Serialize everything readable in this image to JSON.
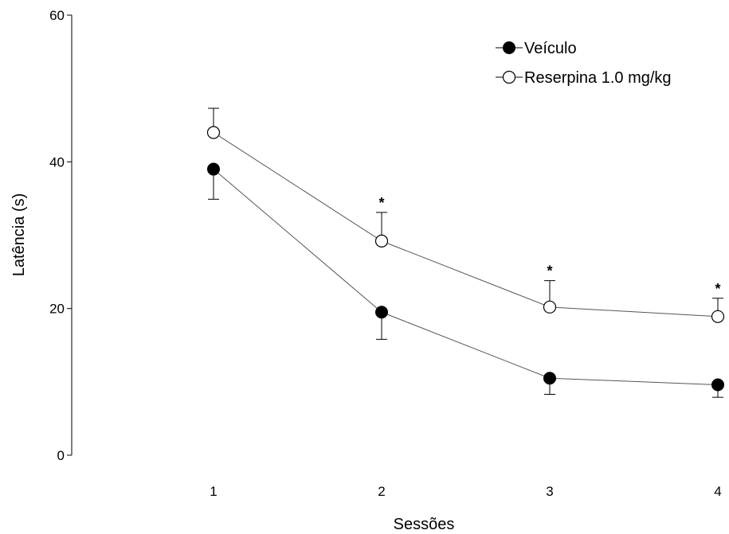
{
  "chart_data": {
    "type": "line",
    "title": "",
    "xlabel": "Sessões",
    "ylabel": "Latência (s)",
    "x": [
      1,
      2,
      3,
      4
    ],
    "x_ticks": [
      "1",
      "2",
      "3",
      "4"
    ],
    "ylim": [
      0,
      60
    ],
    "y_ticks": [
      0,
      20,
      40,
      60
    ],
    "grid": false,
    "legend_position": "top-right",
    "series": [
      {
        "name": "Veículo",
        "marker": "filled-circle",
        "color": "#000000",
        "values": [
          39.0,
          19.5,
          10.5,
          9.6
        ],
        "error": [
          4.1,
          3.7,
          2.2,
          1.7
        ],
        "error_direction": "down"
      },
      {
        "name": "Reserpina 1.0 mg/kg",
        "marker": "open-circle",
        "color": "#000000",
        "values": [
          44.0,
          29.2,
          20.2,
          18.9
        ],
        "error": [
          3.3,
          3.9,
          3.6,
          2.5
        ],
        "error_direction": "up"
      }
    ],
    "significance": [
      {
        "x": 2,
        "label": "*"
      },
      {
        "x": 3,
        "label": "*"
      },
      {
        "x": 4,
        "label": "*"
      }
    ]
  }
}
